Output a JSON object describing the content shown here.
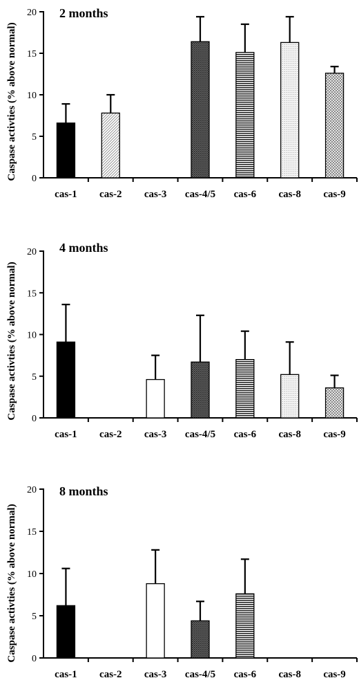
{
  "chart_data": [
    {
      "type": "bar",
      "title": "2 months",
      "ylabel": "Caspase activties (% above normal)",
      "xlabel": "",
      "ylim": [
        0,
        20
      ],
      "yticks": [
        0,
        5,
        10,
        15,
        20
      ],
      "categories": [
        "cas-1",
        "cas-2",
        "cas-3",
        "cas-4/5",
        "cas-6",
        "cas-8",
        "cas-9"
      ],
      "values": [
        6.6,
        7.8,
        null,
        16.4,
        15.1,
        16.3,
        12.6
      ],
      "errors": [
        2.3,
        2.2,
        null,
        3.0,
        3.4,
        3.1,
        0.8
      ]
    },
    {
      "type": "bar",
      "title": "4 months",
      "ylabel": "Caspase activties (% above normal)",
      "xlabel": "",
      "ylim": [
        0,
        20
      ],
      "yticks": [
        0,
        5,
        10,
        15,
        20
      ],
      "categories": [
        "cas-1",
        "cas-2",
        "cas-3",
        "cas-4/5",
        "cas-6",
        "cas-8",
        "cas-9"
      ],
      "values": [
        9.1,
        null,
        4.6,
        6.7,
        7.0,
        5.2,
        3.6
      ],
      "errors": [
        4.5,
        null,
        2.9,
        5.6,
        3.4,
        3.9,
        1.5
      ]
    },
    {
      "type": "bar",
      "title": "8 months",
      "ylabel": "Caspase activties (% above normal)",
      "xlabel": "",
      "ylim": [
        0,
        20
      ],
      "yticks": [
        0,
        5,
        10,
        15,
        20
      ],
      "categories": [
        "cas-1",
        "cas-2",
        "cas-3",
        "cas-4/5",
        "cas-6",
        "cas-8",
        "cas-9"
      ],
      "values": [
        6.2,
        null,
        8.8,
        4.4,
        7.6,
        null,
        null
      ],
      "errors": [
        4.4,
        null,
        4.0,
        2.3,
        4.1,
        null,
        null
      ]
    }
  ],
  "bar_styles": [
    {
      "category": "cas-1",
      "fill": "solid-black"
    },
    {
      "category": "cas-2",
      "fill": "fine-diagonal-hatch"
    },
    {
      "category": "cas-3",
      "fill": "white"
    },
    {
      "category": "cas-4/5",
      "fill": "dark-crosshatch"
    },
    {
      "category": "cas-6",
      "fill": "horizontal-stripes"
    },
    {
      "category": "cas-8",
      "fill": "light-dotted"
    },
    {
      "category": "cas-9",
      "fill": "checkered"
    }
  ]
}
